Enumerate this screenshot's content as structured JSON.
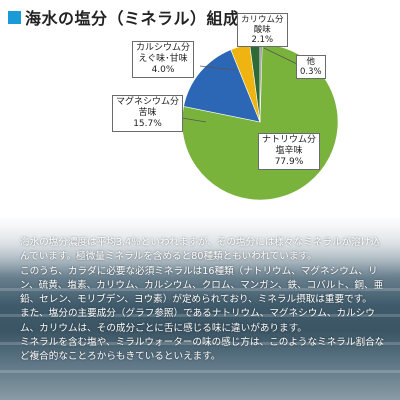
{
  "title": "海水の塩分（ミネラル）組成",
  "colors": {
    "accent": "#1a9ad6"
  },
  "chart_data": {
    "type": "pie",
    "slices": [
      {
        "label": "ナトリウム分",
        "sub": "塩辛味",
        "value": 77.9,
        "value_text": "77.9%",
        "color": "#7ab33c"
      },
      {
        "label": "マグネシウム分",
        "sub": "苦味",
        "value": 15.7,
        "value_text": "15.7%",
        "color": "#2c67b5"
      },
      {
        "label": "カルシウム分",
        "sub": "えぐ味･甘味",
        "value": 4.0,
        "value_text": "4.0%",
        "color": "#f0b412"
      },
      {
        "label": "カリウム分",
        "sub": "酸味",
        "value": 2.1,
        "value_text": "2.1%",
        "color": "#2e6a35"
      },
      {
        "label": "他",
        "sub": "",
        "value": 0.3,
        "value_text": "0.3%",
        "color": "#8c8c8c"
      }
    ]
  },
  "body_paragraphs": [
    "海水の塩分濃度は平均3.4％といわれますが、その塩分には様々なミネラルが溶け込んでいます。極微量ミネラルを含めると80種類ともいわれています。",
    "このうち、カラダに必要な必須ミネラルは16種類（ナトリウム、マグネシウム、リン、硫黄、塩素、カリウム、カルシウム、クロム、マンガン、鉄、コバルト、銅、亜鉛、セレン、モリブデン、ヨウ素）が定められており、ミネラル摂取は重要です。",
    "また、塩分の主要成分（グラフ参照）であるナトリウム、マグネシウム、カルシウム、カリウムは、その成分ごとに舌に感じる味に違いがあります。",
    "ミネラルを含む塩や、ミラルウォーターの味の感じ方は、このようなミネラル割合など複合的なことろからもきているといえます。"
  ]
}
